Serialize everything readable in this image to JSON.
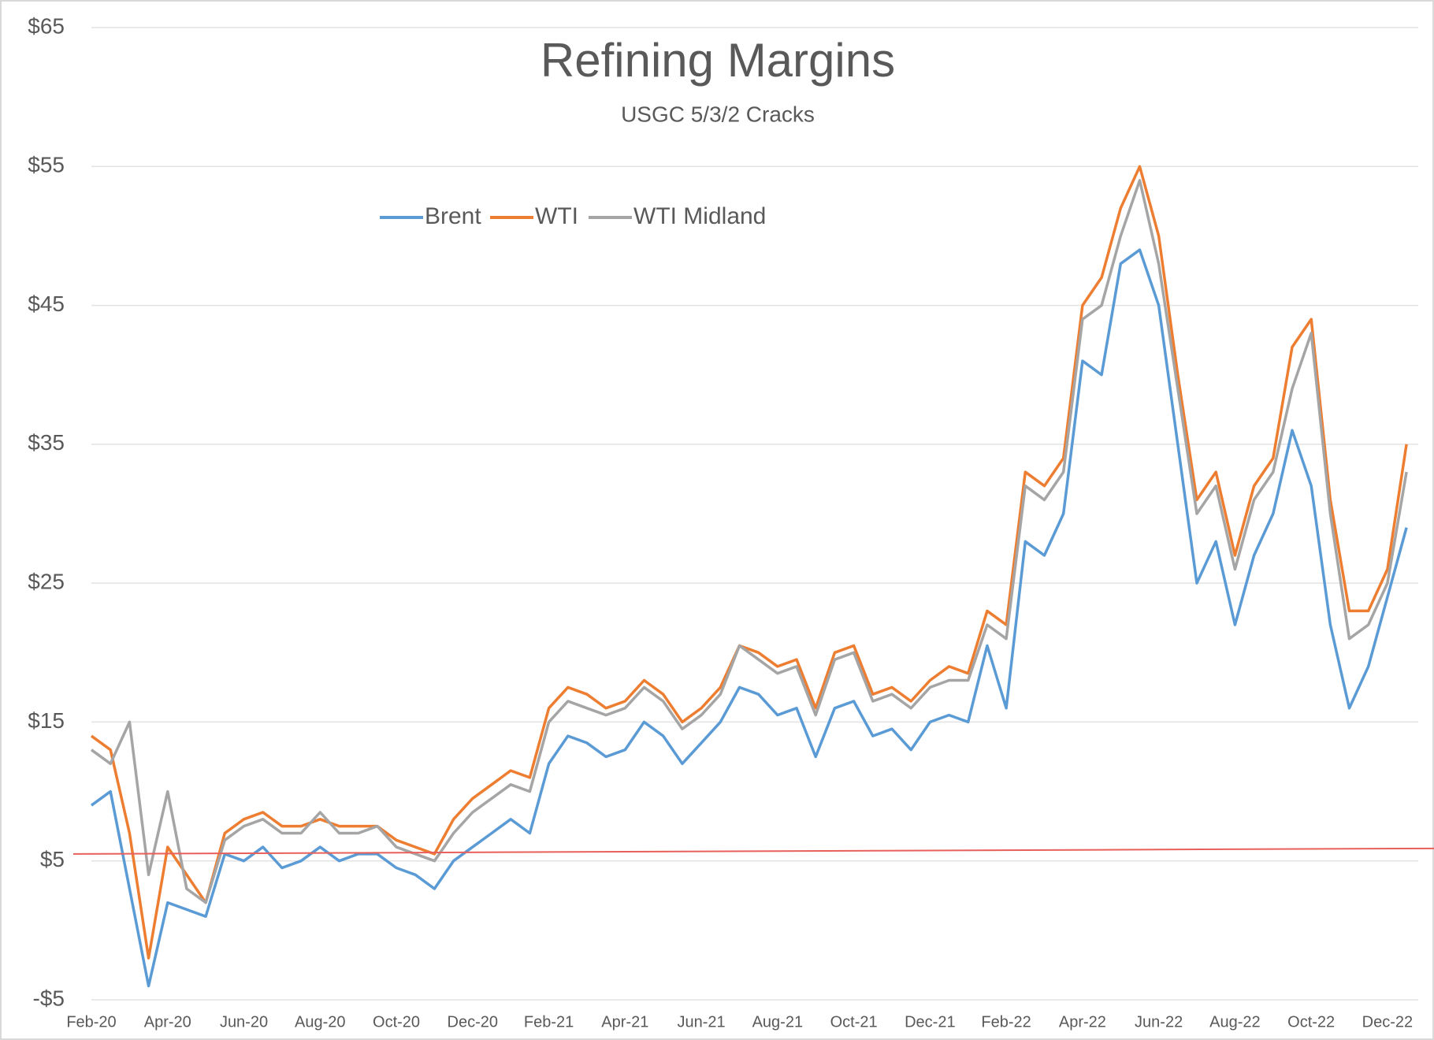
{
  "chart_data": {
    "type": "line",
    "title": "Refining Margins",
    "subtitle": "USGC 5/3/2 Cracks",
    "categories": [
      "Feb-20",
      null,
      null,
      null,
      "Apr-20",
      null,
      null,
      null,
      "Jun-20",
      null,
      null,
      null,
      "Aug-20",
      null,
      null,
      null,
      "Oct-20",
      null,
      null,
      null,
      "Dec-20",
      null,
      null,
      null,
      "Feb-21",
      null,
      null,
      null,
      "Apr-21",
      null,
      null,
      null,
      "Jun-21",
      null,
      null,
      null,
      "Aug-21",
      null,
      null,
      null,
      "Oct-21",
      null,
      null,
      null,
      "Dec-21",
      null,
      null,
      null,
      "Feb-22",
      null,
      null,
      null,
      "Apr-22",
      null,
      null,
      null,
      "Jun-22",
      null,
      null,
      null,
      "Aug-22",
      null,
      null,
      null,
      "Oct-22",
      null,
      null,
      null,
      "Dec-22",
      null
    ],
    "series": [
      {
        "name": "Brent",
        "color": "#5b9bd5",
        "values": [
          9,
          10,
          3,
          -4,
          2,
          1.5,
          1,
          5.5,
          5,
          6,
          4.5,
          5,
          6,
          5,
          5.5,
          5.5,
          4.5,
          4,
          3,
          5,
          6,
          7,
          8,
          7,
          12,
          14,
          13.5,
          12.5,
          13,
          15,
          14,
          12,
          13.5,
          15,
          17.5,
          17,
          15.5,
          16,
          12.5,
          16,
          16.5,
          14,
          14.5,
          13,
          15,
          15.5,
          15,
          20.5,
          16,
          28,
          27,
          30,
          41,
          40,
          48,
          49,
          45,
          35,
          25,
          28,
          22,
          27,
          30,
          36,
          32,
          22,
          16,
          19,
          24,
          29
        ]
      },
      {
        "name": "WTI",
        "color": "#ed7d31",
        "values": [
          14,
          13,
          7,
          -2,
          6,
          4,
          2,
          7,
          8,
          8.5,
          7.5,
          7.5,
          8,
          7.5,
          7.5,
          7.5,
          6.5,
          6,
          5.5,
          8,
          9.5,
          10.5,
          11.5,
          11,
          16,
          17.5,
          17,
          16,
          16.5,
          18,
          17,
          15,
          16,
          17.5,
          20.5,
          20,
          19,
          19.5,
          16,
          20,
          20.5,
          17,
          17.5,
          16.5,
          18,
          19,
          18.5,
          23,
          22,
          33,
          32,
          34,
          45,
          47,
          52,
          55,
          50,
          40,
          31,
          33,
          27,
          32,
          34,
          42,
          44,
          31,
          23,
          23,
          26,
          35
        ]
      },
      {
        "name": "WTI Midland",
        "color": "#a5a5a5",
        "values": [
          13,
          12,
          15,
          4,
          10,
          3,
          2,
          6.5,
          7.5,
          8,
          7,
          7,
          8.5,
          7,
          7,
          7.5,
          6,
          5.5,
          5,
          7,
          8.5,
          9.5,
          10.5,
          10,
          15,
          16.5,
          16,
          15.5,
          16,
          17.5,
          16.5,
          14.5,
          15.5,
          17,
          20.5,
          19.5,
          18.5,
          19,
          15.5,
          19.5,
          20,
          16.5,
          17,
          16,
          17.5,
          18,
          18,
          22,
          21,
          32,
          31,
          33,
          44,
          45,
          50,
          54,
          48,
          39,
          30,
          32,
          26,
          31,
          33,
          39,
          43,
          30,
          21,
          22,
          25,
          33
        ]
      }
    ],
    "reference_line": {
      "values": [
        5.5,
        5.9
      ],
      "color": "#e8605a"
    },
    "ylim": [
      -5,
      65
    ],
    "yticks": [
      {
        "value": -5,
        "label": "-$5"
      },
      {
        "value": 5,
        "label": "$5"
      },
      {
        "value": 15,
        "label": "$15"
      },
      {
        "value": 25,
        "label": "$25"
      },
      {
        "value": 35,
        "label": "$35"
      },
      {
        "value": 45,
        "label": "$45"
      },
      {
        "value": 55,
        "label": "$55"
      },
      {
        "value": 65,
        "label": "$65"
      }
    ],
    "grid": true
  }
}
